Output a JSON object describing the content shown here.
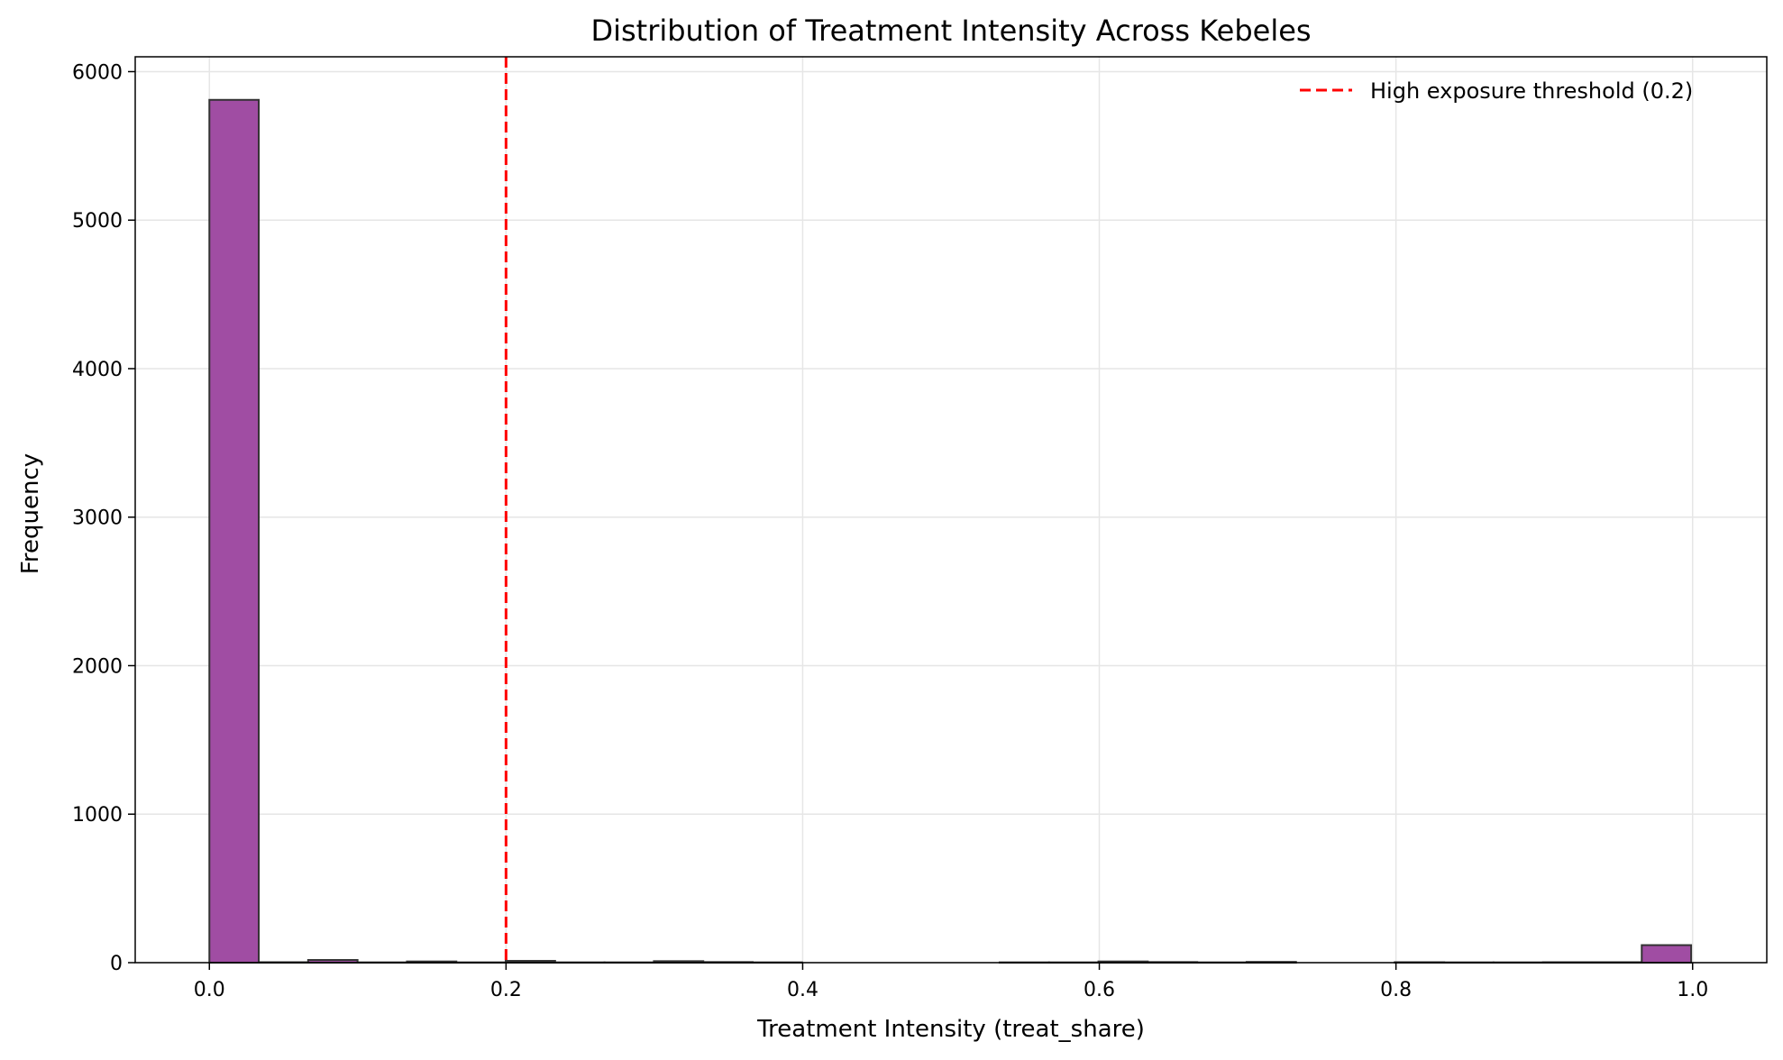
{
  "chart_data": {
    "type": "bar",
    "title": "Distribution of Treatment Intensity Across Kebeles",
    "xlabel": "Treatment Intensity (treat_share)",
    "ylabel": "Frequency",
    "xlim": [
      -0.05,
      1.05
    ],
    "ylim": [
      0,
      6100
    ],
    "xticks": [
      0.0,
      0.2,
      0.4,
      0.6,
      0.8,
      1.0
    ],
    "xtick_labels": [
      "0.0",
      "0.2",
      "0.4",
      "0.6",
      "0.8",
      "1.0"
    ],
    "yticks": [
      0,
      1000,
      2000,
      3000,
      4000,
      5000,
      6000
    ],
    "ytick_labels": [
      "0",
      "1000",
      "2000",
      "3000",
      "4000",
      "5000",
      "6000"
    ],
    "grid": true,
    "bins": {
      "start": 0.0,
      "width": 0.0333,
      "counts": [
        5810,
        3,
        18,
        2,
        8,
        2,
        12,
        2,
        2,
        10,
        4,
        2,
        0,
        0,
        0,
        0,
        2,
        2,
        8,
        4,
        2,
        5,
        0,
        0,
        3,
        2,
        2,
        3,
        3,
        118
      ]
    },
    "bar_color": "#a04da3",
    "bar_edge_color": "#333333",
    "threshold_line": {
      "x": 0.2,
      "color": "#ff0000",
      "label": "High exposure threshold (0.2)"
    },
    "legend_position": "top-right"
  }
}
